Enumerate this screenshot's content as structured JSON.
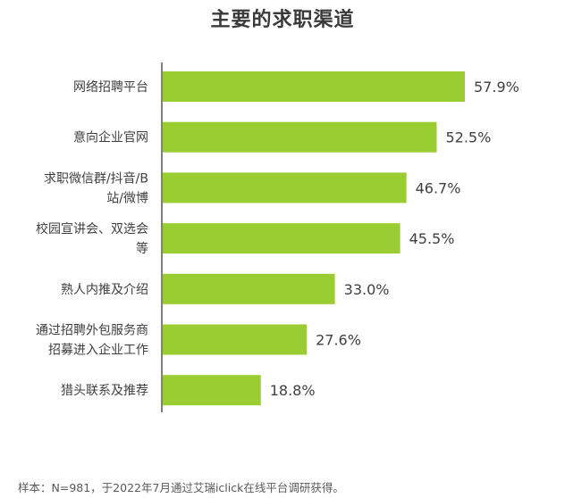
{
  "chart_data": {
    "type": "bar",
    "orientation": "horizontal",
    "title": "主要的求职渠道",
    "categories": [
      [
        "网络招聘平台"
      ],
      [
        "意向企业官网"
      ],
      [
        "求职微信群/抖音/B",
        "站/微博"
      ],
      [
        "校园宣讲会、双选会",
        "等"
      ],
      [
        "熟人内推及介绍"
      ],
      [
        "通过招聘外包服务商",
        "招募进入企业工作"
      ],
      [
        "猎头联系及推荐"
      ]
    ],
    "values": [
      57.9,
      52.5,
      46.7,
      45.5,
      33.0,
      27.6,
      18.8
    ],
    "value_labels": [
      "57.9%",
      "52.5%",
      "46.7%",
      "45.5%",
      "33.0%",
      "27.6%",
      "18.8%"
    ],
    "unit": "%",
    "xlim": [
      0,
      60
    ],
    "grid": false,
    "legend": "none",
    "bar_color": "#9ACD32",
    "axis_color": "#808080"
  },
  "footnote": "样本：N=981，于2022年7月通过艾瑞iclick在线平台调研获得。"
}
